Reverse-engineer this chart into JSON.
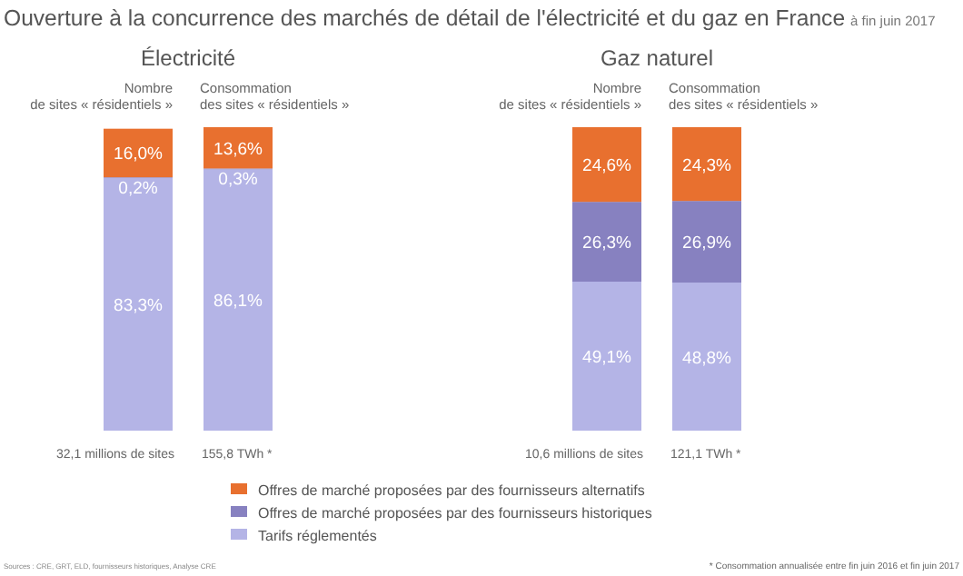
{
  "chart_data": [
    {
      "type": "bar",
      "title": "Électricité",
      "stacked": true,
      "ylim": [
        0,
        100
      ],
      "legend": "bottom",
      "categories": [
        "Nombre\nde sites « résidentiels »",
        "Consommation\ndes sites « résidentiels »"
      ],
      "series": [
        {
          "name": "Tarifs réglementés",
          "color": "#b4b4e6",
          "values": [
            83.3,
            86.1
          ],
          "value_labels": [
            "83,3%",
            "86,1%"
          ]
        },
        {
          "name": "Offres de marché proposées par des fournisseurs historiques",
          "color": "#8781c0",
          "values": [
            0.2,
            0.3
          ],
          "value_labels": [
            "0,2%",
            "0,3%"
          ]
        },
        {
          "name": "Offres de marché proposées par des fournisseurs alternatifs",
          "color": "#e8702f",
          "values": [
            16.0,
            13.6
          ],
          "value_labels": [
            "16,0%",
            "13,6%"
          ]
        }
      ],
      "annotations": [
        "Ouverture à la concurrence des marchés de détail de l'électricité et du gaz en France",
        "à fin juin 2017",
        "Sources : CRE, GRT, ELD, fournisseurs historiques, Analyse CRE",
        "32,1 millions de sites",
        "155,8 TWh *"
      ]
    },
    {
      "type": "bar",
      "title": "Gaz naturel",
      "stacked": true,
      "ylim": [
        0,
        100
      ],
      "categories": [
        "Nombre\nde sites « résidentiels »",
        "Consommation\ndes sites « résidentiels »"
      ],
      "series": [
        {
          "color": "#b4b4e6",
          "values": [
            49.1,
            48.8
          ],
          "value_labels": [
            "49,1%",
            "48,8%"
          ]
        },
        {
          "color": "#8781c0",
          "values": [
            26.3,
            26.9
          ],
          "value_labels": [
            "26,3%",
            "26,9%"
          ]
        },
        {
          "color": "#e8702f",
          "values": [
            24.6,
            24.3
          ],
          "value_labels": [
            "24,6%",
            "24,3%"
          ]
        }
      ],
      "annotations": [
        "* Consommation annualisée entre fin juin 2016 et fin juin 2017",
        "10,6 millions de sites",
        "121,1 TWh *"
      ]
    }
  ]
}
